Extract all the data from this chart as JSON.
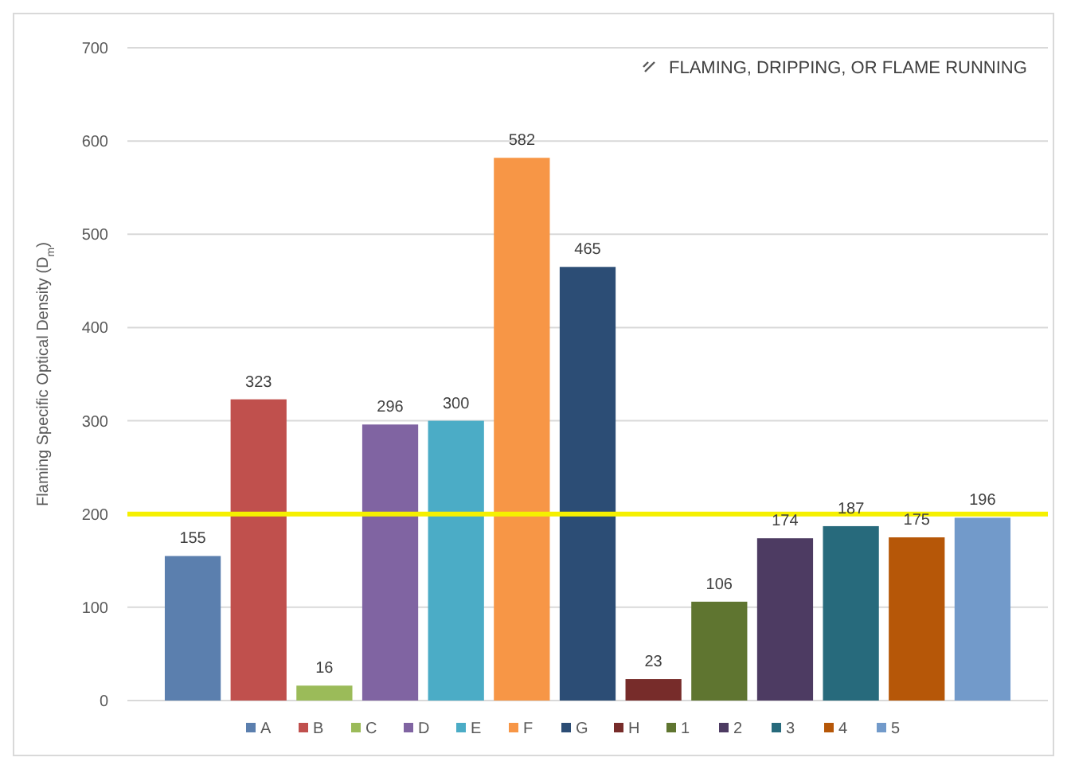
{
  "chart_data": {
    "type": "bar",
    "ylabel": "Flaming Specific Optical Density (D$_{m}$)",
    "categories": [
      null
    ],
    "series": [
      {
        "name": "A",
        "color": "#5b7fae",
        "values": [
          155
        ]
      },
      {
        "name": "B",
        "color": "#c0504d",
        "values": [
          323
        ]
      },
      {
        "name": "C",
        "color": "#9bbb59",
        "values": [
          16
        ]
      },
      {
        "name": "D",
        "color": "#8064a2",
        "values": [
          296
        ]
      },
      {
        "name": "E",
        "color": "#4bacc6",
        "values": [
          300
        ]
      },
      {
        "name": "F",
        "color": "#f79646",
        "values": [
          582
        ]
      },
      {
        "name": "G",
        "color": "#2c4d75",
        "values": [
          465
        ]
      },
      {
        "name": "H",
        "color": "#772c2a",
        "values": [
          23
        ]
      },
      {
        "name": "1",
        "color": "#5f7530",
        "values": [
          106
        ]
      },
      {
        "name": "2",
        "color": "#4d3b62",
        "values": [
          174
        ]
      },
      {
        "name": "3",
        "color": "#276a7c",
        "values": [
          187
        ]
      },
      {
        "name": "4",
        "color": "#b65708",
        "values": [
          175
        ]
      },
      {
        "name": "5",
        "color": "#729aca",
        "values": [
          196
        ]
      }
    ],
    "data_labels": true,
    "ylim": [
      0,
      700
    ],
    "yticks": [
      0,
      100,
      200,
      300,
      400,
      500,
      600,
      700
    ],
    "grid": "y",
    "legend": "bottom",
    "ref_lines": [
      {
        "axis": "y",
        "value": 200,
        "color": "#f5f000"
      }
    ],
    "annotations": [
      "FLAMING, DRIPPING, OR FLAME RUNNING"
    ]
  }
}
